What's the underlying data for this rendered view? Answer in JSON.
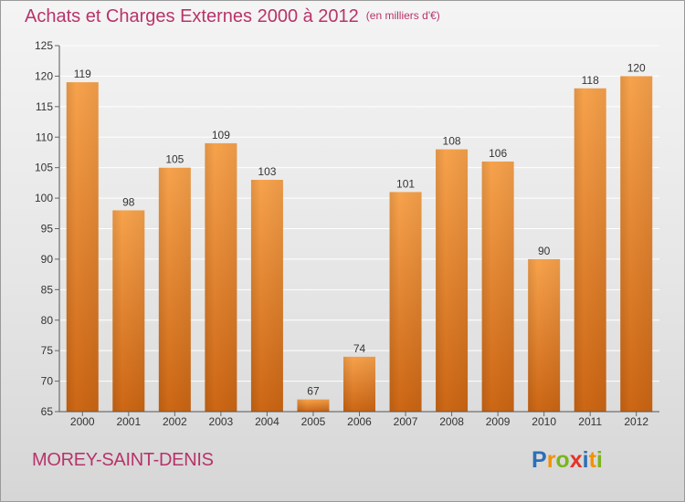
{
  "header": {
    "title": "Achats et Charges Externes 2000 à 2012",
    "unit": "(en milliers d'€)"
  },
  "footer": {
    "place": "MOREY-SAINT-DENIS",
    "logo_letters": [
      "P",
      "r",
      "o",
      "x",
      "i",
      "t",
      "i"
    ],
    "logo_colors": [
      "#2c6fb7",
      "#f39200",
      "#7ab51d",
      "#e6332a",
      "#2c6fb7",
      "#f39200",
      "#7ab51d"
    ]
  },
  "colors": {
    "title": "#b8336a",
    "bar_light": "#f7a24c",
    "bar_dark": "#cc6614",
    "grid": "#ffffff"
  },
  "chart_data": {
    "type": "bar",
    "categories": [
      "2000",
      "2001",
      "2002",
      "2003",
      "2004",
      "2005",
      "2006",
      "2007",
      "2008",
      "2009",
      "2010",
      "2011",
      "2012"
    ],
    "values": [
      119,
      98,
      105,
      109,
      103,
      67,
      74,
      101,
      108,
      106,
      90,
      118,
      120
    ],
    "ylim": [
      65,
      125
    ],
    "yticks": [
      65,
      70,
      75,
      80,
      85,
      90,
      95,
      100,
      105,
      110,
      115,
      120,
      125
    ],
    "grid": true,
    "data_labels": true
  }
}
